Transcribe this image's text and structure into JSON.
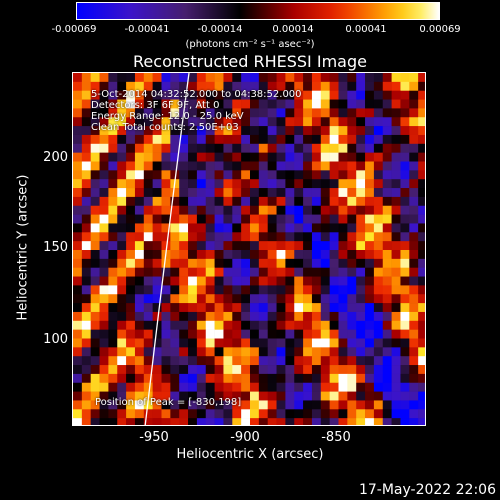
{
  "colorbar": {
    "ticks": [
      "-0.00069",
      "-0.00041",
      "-0.00014",
      "0.00014",
      "0.00041",
      "0.00069"
    ],
    "unit": "(photons cm⁻² s⁻¹ asec⁻²)"
  },
  "title": "Reconstructed RHESSI Image",
  "info": {
    "time_range": "5-Oct-2014 04:32:52.000 to 04:38:52.000",
    "detectors": "Detectors: 3F 6F 9F, Att 0",
    "energy": "Energy Range: 12.0 - 25.0 keV",
    "clean": "Clean    Total counts: 2.50E+03",
    "peak": "Position of Peak = [-830,198]"
  },
  "axes": {
    "xlabel": "Heliocentric X (arcsec)",
    "ylabel": "Heliocentric Y (arcsec)",
    "xticks": [
      "-950",
      "-900",
      "-850"
    ],
    "yticks": [
      "200",
      "150",
      "100"
    ]
  },
  "timestamp": "17-May-2022 22:06"
}
